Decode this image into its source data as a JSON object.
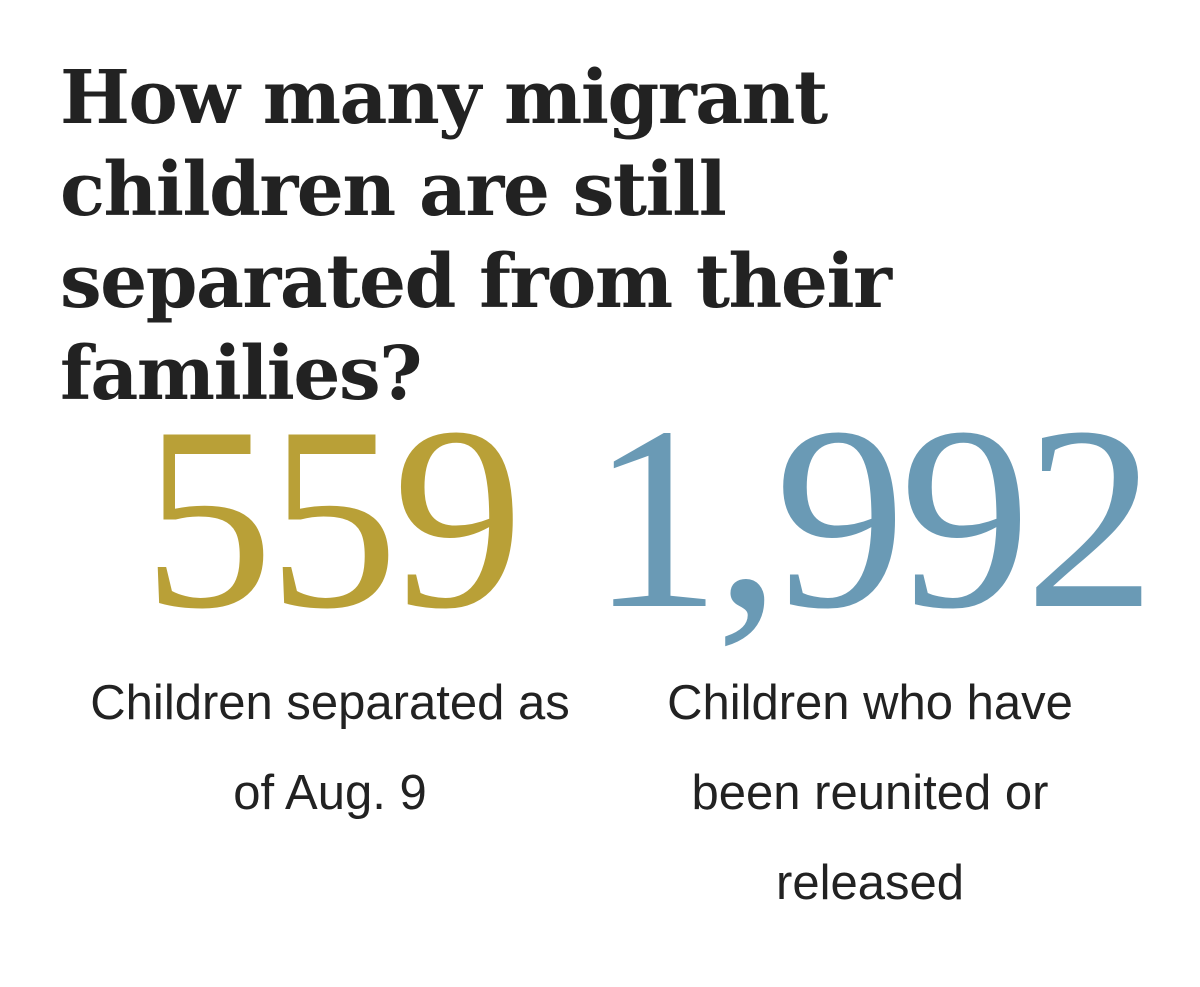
{
  "headline": "How many migrant children are still separated from their families?",
  "chart_data": {
    "type": "table",
    "stats": [
      {
        "value": "559",
        "label": "Children separated as of Aug. 9",
        "color": "#b9a037"
      },
      {
        "value": "1,992",
        "label": "Children who have been reunited or released",
        "color": "#6a9ab5"
      }
    ]
  }
}
